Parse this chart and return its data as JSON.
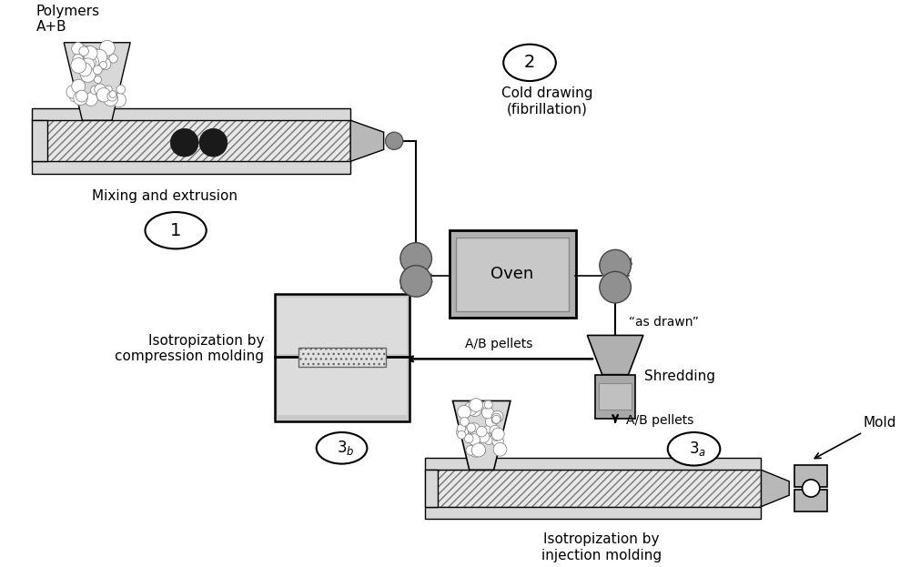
{
  "bg_color": "#ffffff",
  "labels": {
    "polymers": "Polymers\nA+B",
    "mixing": "Mixing and extrusion",
    "step1": "1",
    "step2": "2",
    "cold_drawing": "Cold drawing\n(fibrillation)",
    "oven": "Oven",
    "as_drawn": "“as drawn”",
    "shredding": "Shredding",
    "ab_pellets_top": "A/B pellets",
    "ab_pellets_bot": "A/B pellets",
    "iso_compress": "Isotropization by\ncompression molding",
    "step3b": "3b",
    "step3a": "3a",
    "iso_inject": "Isotropization by\ninjection molding",
    "mold": "Mold"
  }
}
